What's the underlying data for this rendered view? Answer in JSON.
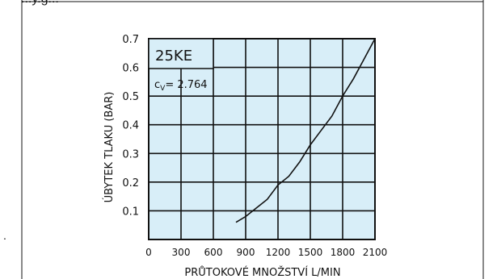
{
  "page": {
    "top_fragment": "...y.g...",
    "margin_mark": "."
  },
  "chart_data": {
    "type": "line",
    "title": "25KE",
    "annotation": "cv= 2.764",
    "annotation_prefix": "c",
    "annotation_sub": "V",
    "annotation_suffix": "= 2.764",
    "xlabel": "PRŮTOKOVÉ MNOŽSTVÍ  L/MIN",
    "ylabel": "ÚBYTEK TLAKU (BAR)",
    "xlim": [
      0,
      2100
    ],
    "ylim": [
      0,
      0.7
    ],
    "x_ticks": [
      0,
      300,
      600,
      900,
      1200,
      1500,
      1800,
      2100
    ],
    "x_tick_labels": [
      "0",
      "300",
      "600",
      "900",
      "1200",
      "1500",
      "1800",
      "2100"
    ],
    "y_ticks": [
      0.1,
      0.2,
      0.3,
      0.4,
      0.5,
      0.6,
      0.7
    ],
    "y_tick_labels": [
      "0.1",
      "0.2",
      "0.3",
      "0.4",
      "0.5",
      "0.6",
      "0.7"
    ],
    "grid": true,
    "series": [
      {
        "x": [
          810,
          900,
          1000,
          1100,
          1200,
          1300,
          1400,
          1500,
          1600,
          1700,
          1800,
          1900,
          2000,
          2100
        ],
        "y": [
          0.06,
          0.08,
          0.11,
          0.14,
          0.19,
          0.22,
          0.27,
          0.33,
          0.38,
          0.43,
          0.5,
          0.56,
          0.63,
          0.7
        ]
      }
    ],
    "colors": {
      "plot_bg": "#d8eef8",
      "line": "#111111",
      "grid": "#111111"
    }
  }
}
